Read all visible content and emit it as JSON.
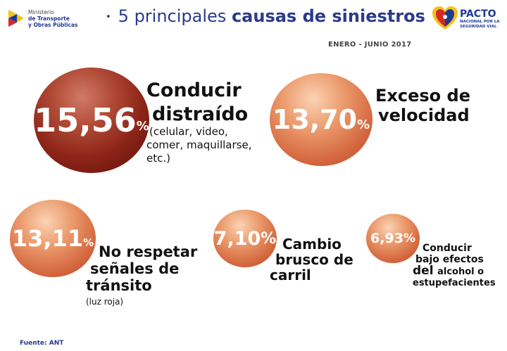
{
  "header": {
    "ministry_line1": "Ministerio",
    "ministry_line2": "de Transporte",
    "ministry_line3": "y Obras Públicas",
    "title_normal": "5 principales",
    "title_bold": "causas de siniestros",
    "pacto_title": "PACTO",
    "pacto_sub": "NACIONAL POR LA SEGURIDAD VIAL",
    "period": "ENERO - JUNIO 2017"
  },
  "causes": [
    {
      "value": "15,56",
      "pct": "%",
      "label_l1": "Conducir",
      "label_l2": "distraído",
      "detail_l1": "(celular, video,",
      "detail_l2": "comer, maquillarse,",
      "detail_l3": "etc.)"
    },
    {
      "value": "13,70",
      "pct": "%",
      "label_l1": "Exceso de",
      "label_l2": "velocidad"
    },
    {
      "value": "13,11",
      "pct": "%",
      "label_l1": "No respetar",
      "label_l2": "señales de",
      "label_l3": "tránsito",
      "detail_l1": "(luz roja)"
    },
    {
      "value": "7,10",
      "pct": "%",
      "label_l1": "Cambio",
      "label_l2": "brusco de",
      "label_l3": "carril"
    },
    {
      "value": "6,93",
      "pct": "%",
      "label_l1": "Conducir",
      "label_l2": "bajo efectos",
      "label_l3_a": "del",
      "label_l3_b": "alcohol o",
      "label_l4": "estupefacientes"
    }
  ],
  "source": "Fuente: ANT",
  "colors": {
    "title": "#2b3a8a",
    "dark_circle": "#8c2518",
    "light_circle": "#d4673e"
  }
}
